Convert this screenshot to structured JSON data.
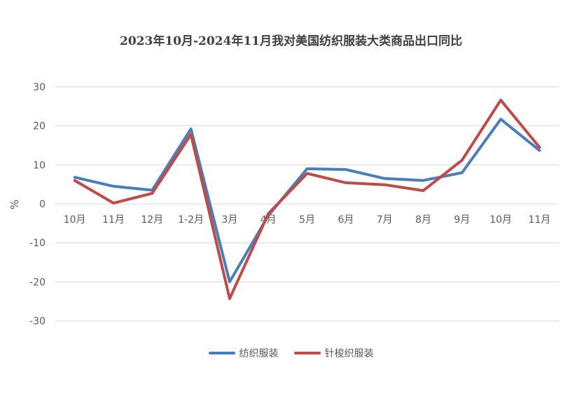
{
  "chart_data": {
    "type": "line",
    "title": "2023年10月-2024年11月我对美国纺织服装大类商品出口同比",
    "ylabel": "%",
    "xlabel": "",
    "categories": [
      "10月",
      "11月",
      "12月",
      "1-2月",
      "3月",
      "4月",
      "5月",
      "6月",
      "7月",
      "8月",
      "9月",
      "10月",
      "11月"
    ],
    "ylim": [
      -30,
      30
    ],
    "yticks": [
      30,
      20,
      10,
      0,
      -10,
      -20,
      -30
    ],
    "grid": true,
    "legend_position": "bottom",
    "series": [
      {
        "name": "纺织服装",
        "color": "#4a7ebb",
        "values": [
          6.8,
          4.5,
          3.5,
          19.2,
          -20.0,
          -3.0,
          9.0,
          8.8,
          6.5,
          6.0,
          8.0,
          21.7,
          13.7
        ]
      },
      {
        "name": "针梭织服装",
        "color": "#be4b48",
        "values": [
          6.0,
          0.2,
          2.7,
          17.8,
          -24.3,
          -2.5,
          7.8,
          5.4,
          4.9,
          3.4,
          11.2,
          26.6,
          14.5
        ]
      }
    ]
  }
}
